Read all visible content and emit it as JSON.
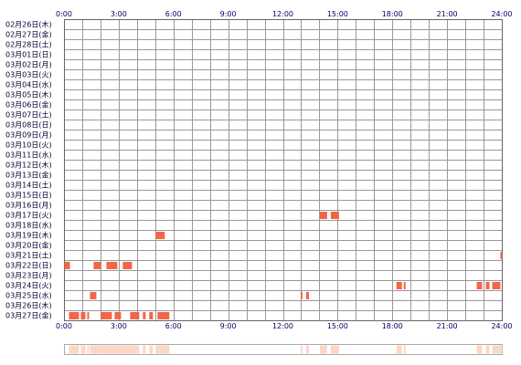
{
  "chart_data": {
    "type": "heatmap",
    "x_ticks": [
      "0:00",
      "3:00",
      "6:00",
      "9:00",
      "12:00",
      "15:00",
      "18:00",
      "21:00",
      "24:00"
    ],
    "x_range_hours": [
      0,
      24
    ],
    "grid_interval_hours": 1,
    "grid": true,
    "rows": [
      {
        "date": "02月26日(木)",
        "intervals": []
      },
      {
        "date": "02月27日(金)",
        "intervals": []
      },
      {
        "date": "02月28日(土)",
        "intervals": []
      },
      {
        "date": "03月01日(日)",
        "intervals": []
      },
      {
        "date": "03月02日(月)",
        "intervals": []
      },
      {
        "date": "03月03日(火)",
        "intervals": []
      },
      {
        "date": "03月04日(水)",
        "intervals": []
      },
      {
        "date": "03月05日(木)",
        "intervals": []
      },
      {
        "date": "03月06日(金)",
        "intervals": []
      },
      {
        "date": "03月07日(土)",
        "intervals": []
      },
      {
        "date": "03月08日(日)",
        "intervals": []
      },
      {
        "date": "03月09日(月)",
        "intervals": []
      },
      {
        "date": "03月10日(火)",
        "intervals": []
      },
      {
        "date": "03月11日(水)",
        "intervals": []
      },
      {
        "date": "03月12日(木)",
        "intervals": []
      },
      {
        "date": "03月13日(金)",
        "intervals": []
      },
      {
        "date": "03月14日(土)",
        "intervals": []
      },
      {
        "date": "03月15日(日)",
        "intervals": []
      },
      {
        "date": "03月16日(月)",
        "intervals": []
      },
      {
        "date": "03月17日(火)",
        "intervals": [
          [
            14.0,
            14.4
          ],
          [
            14.6,
            15.05
          ]
        ]
      },
      {
        "date": "03月18日(水)",
        "intervals": []
      },
      {
        "date": "03月19日(木)",
        "intervals": [
          [
            5.0,
            5.5
          ]
        ]
      },
      {
        "date": "03月20日(金)",
        "intervals": []
      },
      {
        "date": "03月21日(土)",
        "intervals": [
          [
            23.9,
            24.0
          ]
        ]
      },
      {
        "date": "03月22日(日)",
        "intervals": [
          [
            0.0,
            0.3
          ],
          [
            1.6,
            2.0
          ],
          [
            2.3,
            2.9
          ],
          [
            3.2,
            3.7
          ]
        ]
      },
      {
        "date": "03月23日(月)",
        "intervals": []
      },
      {
        "date": "03月24日(火)",
        "intervals": [
          [
            18.2,
            18.5
          ],
          [
            18.6,
            18.7
          ],
          [
            22.6,
            22.9
          ],
          [
            23.1,
            23.3
          ],
          [
            23.45,
            23.9
          ]
        ]
      },
      {
        "date": "03月25日(水)",
        "intervals": [
          [
            1.4,
            1.75
          ],
          [
            12.95,
            13.05
          ],
          [
            13.25,
            13.4
          ]
        ]
      },
      {
        "date": "03月26日(木)",
        "intervals": []
      },
      {
        "date": "03月27日(金)",
        "intervals": [
          [
            0.25,
            0.8
          ],
          [
            0.9,
            1.15
          ],
          [
            1.25,
            1.35
          ],
          [
            2.0,
            2.6
          ],
          [
            2.75,
            3.1
          ],
          [
            3.6,
            4.1
          ],
          [
            4.3,
            4.45
          ],
          [
            4.65,
            4.85
          ],
          [
            5.1,
            5.75
          ]
        ]
      }
    ],
    "summary_intervals": [
      [
        0.25,
        0.8
      ],
      [
        0.9,
        1.15
      ],
      [
        1.25,
        1.35
      ],
      [
        1.4,
        2.0
      ],
      [
        2.0,
        2.9
      ],
      [
        2.75,
        3.7
      ],
      [
        3.6,
        4.1
      ],
      [
        4.3,
        4.45
      ],
      [
        4.65,
        4.85
      ],
      [
        5.0,
        5.75
      ],
      [
        12.95,
        13.05
      ],
      [
        13.25,
        13.4
      ],
      [
        14.0,
        14.4
      ],
      [
        14.6,
        15.05
      ],
      [
        18.2,
        18.5
      ],
      [
        18.6,
        18.7
      ],
      [
        22.6,
        22.9
      ],
      [
        23.1,
        23.3
      ],
      [
        23.45,
        24.0
      ]
    ],
    "colors": {
      "bar": "#f26647",
      "grid": "#999999",
      "border": "#666666",
      "summary_bar": "#fbd7c8",
      "summary_border": "#aaaaaa",
      "row_label": "#000033",
      "tick_label": "#000066"
    }
  }
}
